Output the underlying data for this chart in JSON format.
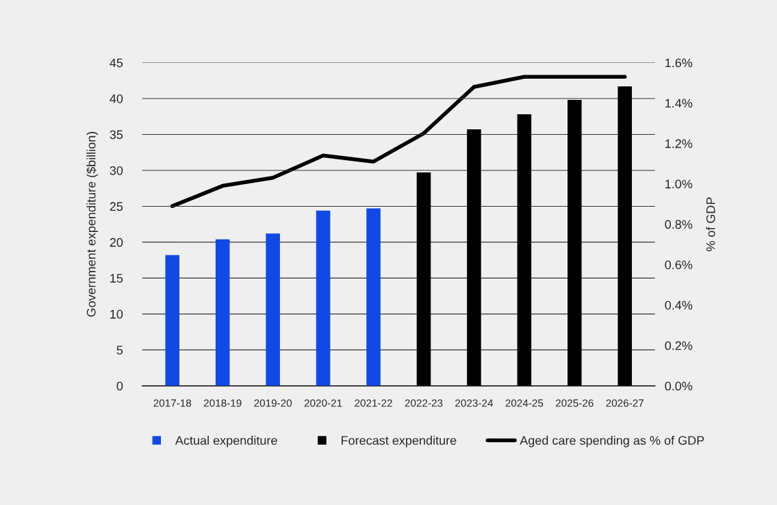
{
  "chart_data": {
    "type": "bar",
    "ylabel": "Government expenditure ($billion)",
    "y2label": "% of GDP",
    "categories": [
      "2017-18",
      "2018-19",
      "2019-20",
      "2020-21",
      "2021-22",
      "2022-23",
      "2023-24",
      "2024-25",
      "2025-26",
      "2026-27"
    ],
    "series": [
      {
        "name": "Actual expenditure",
        "color": "#1049e6",
        "values": [
          18.2,
          20.4,
          21.2,
          24.4,
          24.7,
          null,
          null,
          null,
          null,
          null
        ]
      },
      {
        "name": "Forecast expenditure",
        "color": "#000000",
        "values": [
          null,
          null,
          null,
          null,
          null,
          29.7,
          35.7,
          37.8,
          39.8,
          41.7
        ]
      },
      {
        "name": "Aged care spending as % of GDP",
        "type": "line",
        "axis": "y2",
        "color": "#000000",
        "values": [
          0.89,
          0.99,
          1.03,
          1.14,
          1.11,
          1.25,
          1.48,
          1.53,
          1.53,
          1.53
        ]
      }
    ],
    "ylim": [
      0,
      45
    ],
    "yticks": [
      0,
      5,
      10,
      15,
      20,
      25,
      30,
      35,
      40,
      45
    ],
    "y2lim": [
      0,
      1.6
    ],
    "y2ticks": [
      {
        "value": 0,
        "label": "0.0%"
      },
      {
        "value": 0.2,
        "label": "0.2%"
      },
      {
        "value": 0.4,
        "label": "0.4%"
      },
      {
        "value": 0.6,
        "label": "0.6%"
      },
      {
        "value": 0.8,
        "label": "0.8%"
      },
      {
        "value": 1.0,
        "label": "1.0%"
      },
      {
        "value": 1.2,
        "label": "1.2%"
      },
      {
        "value": 1.4,
        "label": "1.4%"
      },
      {
        "value": 1.6,
        "label": "1.6%"
      }
    ],
    "grid": "y",
    "legend": "bottom",
    "marker": "none",
    "line_style": "solid"
  }
}
